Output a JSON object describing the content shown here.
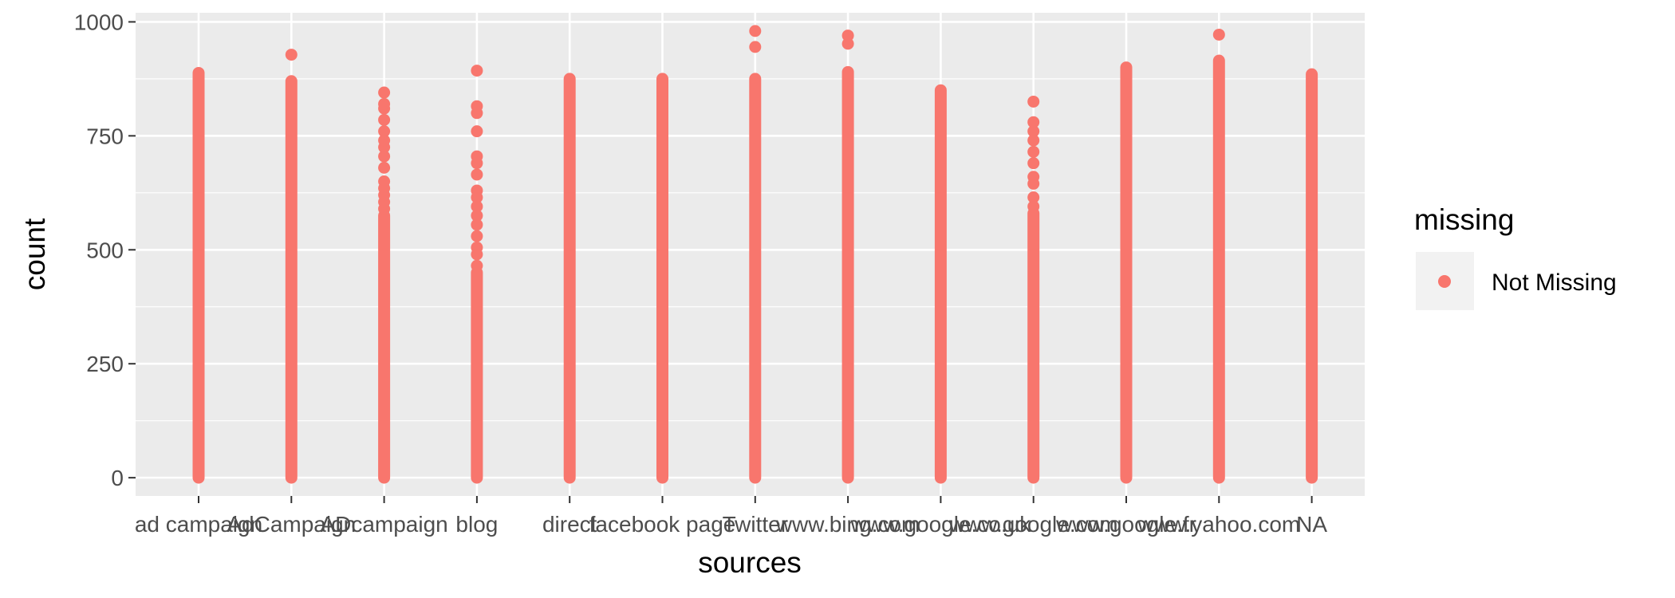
{
  "chart_data": {
    "type": "scatter",
    "title": "",
    "xlabel": "sources",
    "ylabel": "count",
    "ylim": [
      -40,
      1020
    ],
    "yticks": [
      0,
      250,
      500,
      750,
      1000
    ],
    "categories": [
      "ad campaign",
      "AdCampaign",
      "ADcampaign",
      "blog",
      "direct",
      "facebook page",
      "Twitter",
      "www.bing.com",
      "www.google.co.uk",
      "www.google.com",
      "www.google.fr",
      "www.yahoo.com",
      "NA"
    ],
    "grid": true,
    "legend": {
      "title": "missing",
      "position": "right",
      "entries": [
        "Not Missing"
      ]
    },
    "series": [
      {
        "name": "Not Missing",
        "color": "#F8766D",
        "ranges": [
          {
            "category": "ad campaign",
            "from": 0,
            "to": 888
          },
          {
            "category": "AdCampaign",
            "from": 0,
            "to": 870
          },
          {
            "category": "ADcampaign",
            "from": 0,
            "to": 575
          },
          {
            "category": "blog",
            "from": 0,
            "to": 450
          },
          {
            "category": "direct",
            "from": 0,
            "to": 875
          },
          {
            "category": "facebook page",
            "from": 0,
            "to": 875
          },
          {
            "category": "Twitter",
            "from": 0,
            "to": 875
          },
          {
            "category": "www.bing.com",
            "from": 0,
            "to": 890
          },
          {
            "category": "www.google.co.uk",
            "from": 0,
            "to": 850
          },
          {
            "category": "www.google.com",
            "from": 0,
            "to": 580
          },
          {
            "category": "www.google.fr",
            "from": 0,
            "to": 900
          },
          {
            "category": "www.yahoo.com",
            "from": 0,
            "to": 915
          },
          {
            "category": "NA",
            "from": 0,
            "to": 885
          }
        ],
        "outliers": [
          {
            "category": "AdCampaign",
            "values": [
              928
            ]
          },
          {
            "category": "ADcampaign",
            "values": [
              590,
              605,
              620,
              635,
              650,
              680,
              705,
              725,
              740,
              760,
              785,
              810,
              820,
              845
            ]
          },
          {
            "category": "blog",
            "values": [
              465,
              490,
              505,
              530,
              555,
              575,
              595,
              615,
              630,
              665,
              690,
              705,
              760,
              800,
              815,
              893
            ]
          },
          {
            "category": "Twitter",
            "values": [
              945,
              980
            ]
          },
          {
            "category": "www.bing.com",
            "values": [
              952,
              970
            ]
          },
          {
            "category": "www.google.com",
            "values": [
              595,
              615,
              645,
              660,
              690,
              715,
              740,
              760,
              780,
              825
            ]
          },
          {
            "category": "www.yahoo.com",
            "values": [
              972
            ]
          }
        ]
      }
    ]
  }
}
